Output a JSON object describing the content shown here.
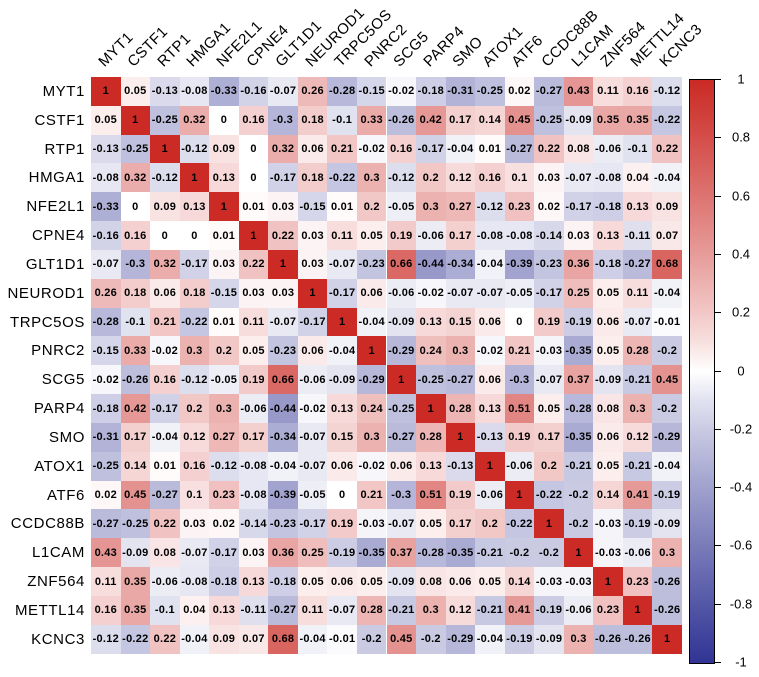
{
  "chart_data": {
    "type": "heatmap",
    "title": "",
    "labels": [
      "MYT1",
      "CSTF1",
      "RTP1",
      "HMGA1",
      "NFE2L1",
      "CPNE4",
      "GLT1D1",
      "NEUROD1",
      "TRPC5OS",
      "PNRC2",
      "SCG5",
      "PARP4",
      "SMO",
      "ATOX1",
      "ATF6",
      "CCDC88B",
      "L1CAM",
      "ZNF564",
      "METTL14",
      "KCNC3"
    ],
    "matrix": [
      [
        1,
        0.05,
        -0.13,
        -0.08,
        -0.33,
        -0.16,
        -0.07,
        0.26,
        -0.28,
        -0.15,
        -0.02,
        -0.18,
        -0.31,
        -0.25,
        0.02,
        -0.27,
        0.43,
        0.11,
        0.16,
        -0.12
      ],
      [
        0.05,
        1,
        -0.25,
        0.32,
        0,
        0.16,
        -0.3,
        0.18,
        -0.1,
        0.33,
        -0.26,
        0.42,
        0.17,
        0.14,
        0.45,
        -0.25,
        -0.09,
        0.35,
        0.35,
        -0.22
      ],
      [
        -0.13,
        -0.25,
        1,
        -0.12,
        0.09,
        0,
        0.32,
        0.06,
        0.21,
        -0.02,
        0.16,
        -0.17,
        -0.04,
        0.01,
        -0.27,
        0.22,
        0.08,
        -0.06,
        -0.1,
        0.22
      ],
      [
        -0.08,
        0.32,
        -0.12,
        1,
        0.13,
        0,
        -0.17,
        0.18,
        -0.22,
        0.3,
        -0.12,
        0.2,
        0.12,
        0.16,
        0.1,
        0.03,
        -0.07,
        -0.08,
        0.04,
        -0.04
      ],
      [
        -0.33,
        0,
        0.09,
        0.13,
        1,
        0.01,
        0.03,
        -0.15,
        0.01,
        0.2,
        -0.05,
        0.3,
        0.27,
        -0.12,
        0.23,
        0.02,
        -0.17,
        -0.18,
        0.13,
        0.09
      ],
      [
        -0.16,
        0.16,
        0,
        0,
        0.01,
        1,
        0.22,
        0.03,
        0.11,
        0.05,
        0.19,
        -0.06,
        0.17,
        -0.08,
        -0.08,
        -0.14,
        0.03,
        0.13,
        -0.11,
        0.07
      ],
      [
        -0.07,
        -0.3,
        0.32,
        -0.17,
        0.03,
        0.22,
        1,
        0.03,
        -0.07,
        -0.23,
        0.66,
        -0.44,
        -0.34,
        -0.04,
        -0.39,
        -0.23,
        0.36,
        -0.18,
        -0.27,
        0.68
      ],
      [
        0.26,
        0.18,
        0.06,
        0.18,
        -0.15,
        0.03,
        0.03,
        1,
        -0.17,
        0.06,
        -0.06,
        -0.02,
        -0.07,
        -0.07,
        -0.05,
        -0.17,
        0.25,
        0.05,
        0.11,
        -0.04
      ],
      [
        -0.28,
        -0.1,
        0.21,
        -0.22,
        0.01,
        0.11,
        -0.07,
        -0.17,
        1,
        -0.04,
        -0.09,
        0.13,
        0.15,
        0.06,
        0,
        0.19,
        -0.19,
        0.06,
        -0.07,
        -0.01
      ],
      [
        -0.15,
        0.33,
        -0.02,
        0.3,
        0.2,
        0.05,
        -0.23,
        0.06,
        -0.04,
        1,
        -0.29,
        0.24,
        0.3,
        -0.02,
        0.21,
        -0.03,
        -0.35,
        0.05,
        0.28,
        -0.2
      ],
      [
        -0.02,
        -0.26,
        0.16,
        -0.12,
        -0.05,
        0.19,
        0.66,
        -0.06,
        -0.09,
        -0.29,
        1,
        -0.25,
        -0.27,
        0.06,
        -0.3,
        -0.07,
        0.37,
        -0.09,
        -0.21,
        0.45
      ],
      [
        -0.18,
        0.42,
        -0.17,
        0.2,
        0.3,
        -0.06,
        -0.44,
        -0.02,
        0.13,
        0.24,
        -0.25,
        1,
        0.28,
        0.13,
        0.51,
        0.05,
        -0.28,
        0.08,
        0.3,
        -0.2
      ],
      [
        -0.31,
        0.17,
        -0.04,
        0.12,
        0.27,
        0.17,
        -0.34,
        -0.07,
        0.15,
        0.3,
        -0.27,
        0.28,
        1,
        -0.13,
        0.19,
        0.17,
        -0.35,
        0.06,
        0.12,
        -0.29
      ],
      [
        -0.25,
        0.14,
        0.01,
        0.16,
        -0.12,
        -0.08,
        -0.04,
        -0.07,
        0.06,
        -0.02,
        0.06,
        0.13,
        -0.13,
        1,
        -0.06,
        0.2,
        -0.21,
        0.05,
        -0.21,
        -0.04
      ],
      [
        0.02,
        0.45,
        -0.27,
        0.1,
        0.23,
        -0.08,
        -0.39,
        -0.05,
        0,
        0.21,
        -0.3,
        0.51,
        0.19,
        -0.06,
        1,
        -0.22,
        -0.2,
        0.14,
        0.41,
        -0.19
      ],
      [
        -0.27,
        -0.25,
        0.22,
        0.03,
        0.02,
        -0.14,
        -0.23,
        -0.17,
        0.19,
        -0.03,
        -0.07,
        0.05,
        0.17,
        0.2,
        -0.22,
        1,
        -0.2,
        -0.03,
        -0.19,
        -0.09
      ],
      [
        0.43,
        -0.09,
        0.08,
        -0.07,
        -0.17,
        0.03,
        0.36,
        0.25,
        -0.19,
        -0.35,
        0.37,
        -0.28,
        -0.35,
        -0.21,
        -0.2,
        -0.2,
        1,
        -0.03,
        -0.06,
        0.3
      ],
      [
        0.11,
        0.35,
        -0.06,
        -0.08,
        -0.18,
        0.13,
        -0.18,
        0.05,
        0.06,
        0.05,
        -0.09,
        0.08,
        0.06,
        0.05,
        0.14,
        -0.03,
        -0.03,
        1,
        0.23,
        -0.26
      ],
      [
        0.16,
        0.35,
        -0.1,
        0.04,
        0.13,
        -0.11,
        -0.27,
        0.11,
        -0.07,
        0.28,
        -0.21,
        0.3,
        0.12,
        -0.21,
        0.41,
        -0.19,
        -0.06,
        0.23,
        1,
        -0.26
      ],
      [
        -0.12,
        -0.22,
        0.22,
        -0.04,
        0.09,
        0.07,
        0.68,
        -0.04,
        -0.01,
        -0.2,
        0.45,
        -0.2,
        -0.29,
        -0.04,
        -0.19,
        -0.09,
        0.3,
        -0.26,
        -0.26,
        1
      ]
    ],
    "colorbar": {
      "ticks": [
        1,
        0.8,
        0.6,
        0.4,
        0.2,
        0,
        -0.2,
        -0.4,
        -0.6,
        -0.8,
        -1
      ],
      "min": -1,
      "max": 1
    },
    "colors": {
      "positive_end": "#CB2A25",
      "midpoint": "#FFFFFF",
      "negative_end": "#313494"
    },
    "legend_position": "right",
    "grid": false
  }
}
